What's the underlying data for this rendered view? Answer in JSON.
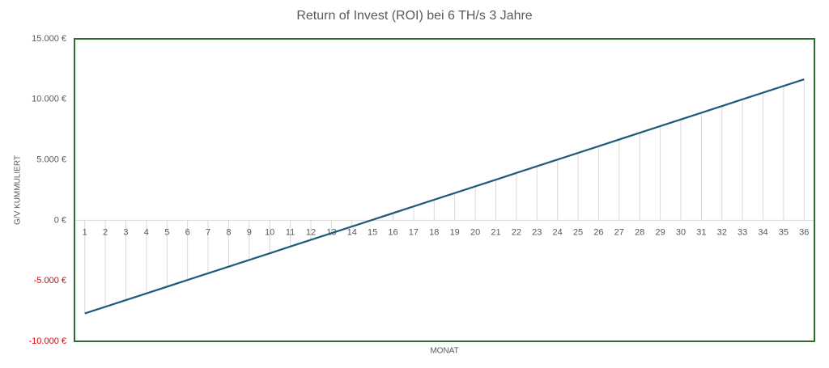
{
  "chart_data": {
    "type": "line",
    "title": "Return of Invest (ROI) bei 6 TH/s 3 Jahre",
    "x_label": "MONAT",
    "y_label": "G/V KUMMULIERT",
    "categories": [
      "1",
      "2",
      "3",
      "4",
      "5",
      "6",
      "7",
      "8",
      "9",
      "10",
      "11",
      "12",
      "13",
      "14",
      "15",
      "16",
      "17",
      "18",
      "19",
      "20",
      "21",
      "22",
      "23",
      "24",
      "25",
      "26",
      "27",
      "28",
      "29",
      "30",
      "31",
      "32",
      "33",
      "34",
      "35",
      "36"
    ],
    "series": [
      {
        "name": "G/V kummuliert",
        "color": "#1f5c7a",
        "values": [
          -7700,
          -7147,
          -6594,
          -6041,
          -5488,
          -4935,
          -4382,
          -3829,
          -3276,
          -2723,
          -2170,
          -1617,
          -1064,
          -511,
          42,
          595,
          1148,
          1701,
          2254,
          2807,
          3360,
          3913,
          4466,
          5019,
          5572,
          6125,
          6678,
          7231,
          7784,
          8337,
          8890,
          9443,
          9996,
          10549,
          11102,
          11655
        ]
      }
    ],
    "ylim": [
      -10000,
      15000
    ],
    "yticks": [
      {
        "value": -10000,
        "label": "-10.000 €"
      },
      {
        "value": -5000,
        "label": "-5.000 €"
      },
      {
        "value": 0,
        "label": "0 €"
      },
      {
        "value": 5000,
        "label": "5.000 €"
      },
      {
        "value": 10000,
        "label": "10.000 €"
      },
      {
        "value": 15000,
        "label": "15.000 €"
      }
    ],
    "negative_tick_color": "#e00000",
    "drop_lines": true,
    "plot_border_color": "#2e6b2e"
  }
}
